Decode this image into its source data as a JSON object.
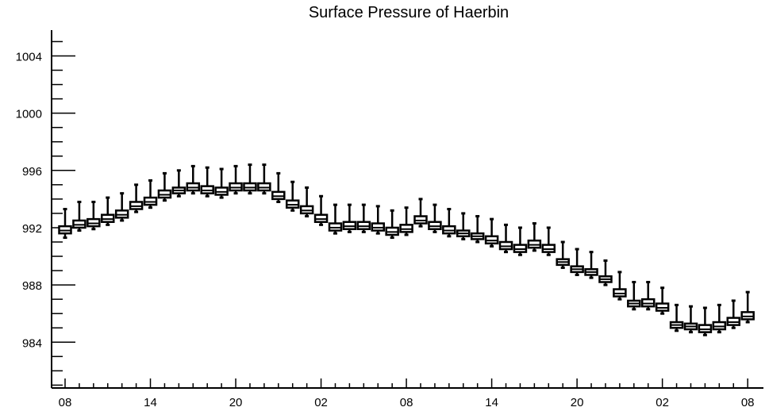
{
  "chart_data": {
    "type": "box",
    "title": "Surface Pressure of Haerbin",
    "xlabel": "",
    "ylabel": "",
    "x_tick_labels": [
      "08",
      "14",
      "20",
      "02",
      "08",
      "14",
      "20",
      "02",
      "08"
    ],
    "x_tick_steps": [
      0,
      6,
      12,
      18,
      24,
      30,
      36,
      42,
      48
    ],
    "y_ticks": [
      984,
      988,
      992,
      996,
      1000,
      1004
    ],
    "ylim": [
      980.8,
      1005.8
    ],
    "grid": false,
    "series": [
      {
        "step": 0,
        "q1": 991.6,
        "median": 991.8,
        "q3": 992.1,
        "min": 991.3,
        "max": 993.3
      },
      {
        "step": 1,
        "q1": 992.0,
        "median": 992.2,
        "q3": 992.5,
        "min": 991.8,
        "max": 993.8
      },
      {
        "step": 2,
        "q1": 992.1,
        "median": 992.3,
        "q3": 992.6,
        "min": 991.9,
        "max": 993.8
      },
      {
        "step": 3,
        "q1": 992.4,
        "median": 992.6,
        "q3": 992.9,
        "min": 992.2,
        "max": 994.1
      },
      {
        "step": 4,
        "q1": 992.7,
        "median": 992.9,
        "q3": 993.2,
        "min": 992.5,
        "max": 994.4
      },
      {
        "step": 5,
        "q1": 993.3,
        "median": 993.5,
        "q3": 993.8,
        "min": 993.1,
        "max": 995.0
      },
      {
        "step": 6,
        "q1": 993.6,
        "median": 993.8,
        "q3": 994.1,
        "min": 993.4,
        "max": 995.3
      },
      {
        "step": 7,
        "q1": 994.1,
        "median": 994.3,
        "q3": 994.6,
        "min": 993.9,
        "max": 995.8
      },
      {
        "step": 8,
        "q1": 994.4,
        "median": 994.6,
        "q3": 994.8,
        "min": 994.2,
        "max": 996.0
      },
      {
        "step": 9,
        "q1": 994.6,
        "median": 994.8,
        "q3": 995.1,
        "min": 994.4,
        "max": 996.3
      },
      {
        "step": 10,
        "q1": 994.4,
        "median": 994.6,
        "q3": 994.9,
        "min": 994.2,
        "max": 996.2
      },
      {
        "step": 11,
        "q1": 994.3,
        "median": 994.5,
        "q3": 994.8,
        "min": 994.1,
        "max": 996.1
      },
      {
        "step": 12,
        "q1": 994.6,
        "median": 994.8,
        "q3": 995.1,
        "min": 994.4,
        "max": 996.3
      },
      {
        "step": 13,
        "q1": 994.6,
        "median": 994.8,
        "q3": 995.1,
        "min": 994.4,
        "max": 996.4
      },
      {
        "step": 14,
        "q1": 994.6,
        "median": 994.8,
        "q3": 995.1,
        "min": 994.4,
        "max": 996.4
      },
      {
        "step": 15,
        "q1": 994.0,
        "median": 994.2,
        "q3": 994.5,
        "min": 993.8,
        "max": 995.8
      },
      {
        "step": 16,
        "q1": 993.4,
        "median": 993.6,
        "q3": 993.9,
        "min": 993.2,
        "max": 995.2
      },
      {
        "step": 17,
        "q1": 993.0,
        "median": 993.2,
        "q3": 993.5,
        "min": 992.8,
        "max": 994.8
      },
      {
        "step": 18,
        "q1": 992.4,
        "median": 992.6,
        "q3": 992.9,
        "min": 992.2,
        "max": 994.2
      },
      {
        "step": 19,
        "q1": 991.8,
        "median": 992.0,
        "q3": 992.3,
        "min": 991.6,
        "max": 993.6
      },
      {
        "step": 20,
        "q1": 991.9,
        "median": 992.1,
        "q3": 992.4,
        "min": 991.7,
        "max": 993.6
      },
      {
        "step": 21,
        "q1": 991.9,
        "median": 992.1,
        "q3": 992.4,
        "min": 991.7,
        "max": 993.6
      },
      {
        "step": 22,
        "q1": 991.8,
        "median": 992.0,
        "q3": 992.3,
        "min": 991.6,
        "max": 993.5
      },
      {
        "step": 23,
        "q1": 991.5,
        "median": 991.7,
        "q3": 992.0,
        "min": 991.3,
        "max": 993.2
      },
      {
        "step": 24,
        "q1": 991.7,
        "median": 991.9,
        "q3": 992.2,
        "min": 991.5,
        "max": 993.4
      },
      {
        "step": 25,
        "q1": 992.3,
        "median": 992.5,
        "q3": 992.8,
        "min": 992.1,
        "max": 994.0
      },
      {
        "step": 26,
        "q1": 991.9,
        "median": 992.1,
        "q3": 992.4,
        "min": 991.7,
        "max": 993.6
      },
      {
        "step": 27,
        "q1": 991.6,
        "median": 991.8,
        "q3": 992.1,
        "min": 991.4,
        "max": 993.3
      },
      {
        "step": 28,
        "q1": 991.4,
        "median": 991.6,
        "q3": 991.8,
        "min": 991.2,
        "max": 993.0
      },
      {
        "step": 29,
        "q1": 991.2,
        "median": 991.4,
        "q3": 991.6,
        "min": 991.0,
        "max": 992.8
      },
      {
        "step": 30,
        "q1": 990.9,
        "median": 991.1,
        "q3": 991.4,
        "min": 990.7,
        "max": 992.6
      },
      {
        "step": 31,
        "q1": 990.5,
        "median": 990.7,
        "q3": 991.0,
        "min": 990.3,
        "max": 992.2
      },
      {
        "step": 32,
        "q1": 990.3,
        "median": 990.5,
        "q3": 990.8,
        "min": 990.1,
        "max": 992.0
      },
      {
        "step": 33,
        "q1": 990.6,
        "median": 990.8,
        "q3": 991.1,
        "min": 990.4,
        "max": 992.3
      },
      {
        "step": 34,
        "q1": 990.3,
        "median": 990.5,
        "q3": 990.8,
        "min": 990.1,
        "max": 992.0
      },
      {
        "step": 35,
        "q1": 989.4,
        "median": 989.6,
        "q3": 989.8,
        "min": 989.2,
        "max": 991.0
      },
      {
        "step": 36,
        "q1": 988.9,
        "median": 989.1,
        "q3": 989.3,
        "min": 988.7,
        "max": 990.5
      },
      {
        "step": 37,
        "q1": 988.7,
        "median": 988.9,
        "q3": 989.1,
        "min": 988.5,
        "max": 990.3
      },
      {
        "step": 38,
        "q1": 988.2,
        "median": 988.4,
        "q3": 988.6,
        "min": 988.0,
        "max": 989.7
      },
      {
        "step": 39,
        "q1": 987.2,
        "median": 987.4,
        "q3": 987.7,
        "min": 987.0,
        "max": 988.9
      },
      {
        "step": 40,
        "q1": 986.5,
        "median": 986.7,
        "q3": 986.9,
        "min": 986.3,
        "max": 988.2
      },
      {
        "step": 41,
        "q1": 986.5,
        "median": 986.7,
        "q3": 987.0,
        "min": 986.3,
        "max": 988.2
      },
      {
        "step": 42,
        "q1": 986.2,
        "median": 986.4,
        "q3": 986.7,
        "min": 986.0,
        "max": 987.8
      },
      {
        "step": 43,
        "q1": 985.0,
        "median": 985.2,
        "q3": 985.4,
        "min": 984.8,
        "max": 986.6
      },
      {
        "step": 44,
        "q1": 984.9,
        "median": 985.1,
        "q3": 985.3,
        "min": 984.7,
        "max": 986.5
      },
      {
        "step": 45,
        "q1": 984.7,
        "median": 984.9,
        "q3": 985.2,
        "min": 984.5,
        "max": 986.4
      },
      {
        "step": 46,
        "q1": 984.9,
        "median": 985.1,
        "q3": 985.4,
        "min": 984.7,
        "max": 986.6
      },
      {
        "step": 47,
        "q1": 985.2,
        "median": 985.4,
        "q3": 985.7,
        "min": 985.0,
        "max": 986.9
      },
      {
        "step": 48,
        "q1": 985.6,
        "median": 985.8,
        "q3": 986.1,
        "min": 985.4,
        "max": 987.5
      }
    ]
  }
}
